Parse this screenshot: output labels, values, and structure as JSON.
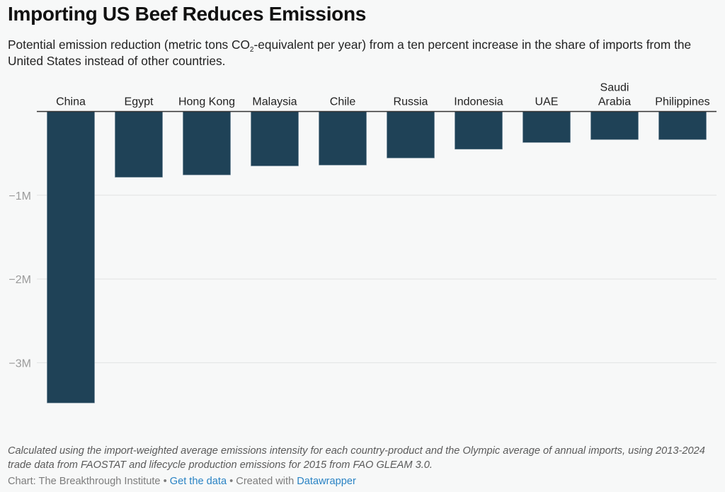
{
  "header": {
    "title": "Importing US Beef Reduces Emissions",
    "subtitle_pre": "Potential emission reduction (metric tons CO",
    "subtitle_sub": "2",
    "subtitle_post": "-equivalent per year) from a ten percent increase in the share of imports from the United States instead of other countries."
  },
  "chart_data": {
    "type": "bar",
    "orientation": "vertical",
    "title": "Importing US Beef Reduces Emissions",
    "xlabel": "",
    "ylabel": "",
    "categories": [
      "China",
      "Egypt",
      "Hong Kong",
      "Malaysia",
      "Chile",
      "Russia",
      "Indonesia",
      "UAE",
      "Saudi Arabia",
      "Philippines"
    ],
    "category_labels": [
      [
        "China"
      ],
      [
        "Egypt"
      ],
      [
        "Hong Kong"
      ],
      [
        "Malaysia"
      ],
      [
        "Chile"
      ],
      [
        "Russia"
      ],
      [
        "Indonesia"
      ],
      [
        "UAE"
      ],
      [
        "Saudi",
        "Arabia"
      ],
      [
        "Philippines"
      ]
    ],
    "values": [
      -3480000,
      -785000,
      -757000,
      -650000,
      -640000,
      -555000,
      -450000,
      -370000,
      -335000,
      -335000
    ],
    "ylim": [
      -3500000,
      0
    ],
    "yticks": [
      -1000000,
      -2000000,
      -3000000
    ],
    "ytick_labels": [
      "−1M",
      "−2M",
      "−3M"
    ],
    "grid": true,
    "legend": "none",
    "bar_color": "#1f4257",
    "category_label_position": "top"
  },
  "footer": {
    "notes": "Calculated using the import-weighted average emissions intensity for each country-product and the Olympic average of annual imports, using 2013-2024 trade data from FAOSTAT and lifecycle production emissions for 2015 from FAO GLEAM 3.0.",
    "source_prefix": "Chart: The Breakthrough Institute",
    "separator": " • ",
    "get_data_label": "Get the data",
    "created_with_prefix": "Created with ",
    "datawrapper_label": "Datawrapper"
  }
}
